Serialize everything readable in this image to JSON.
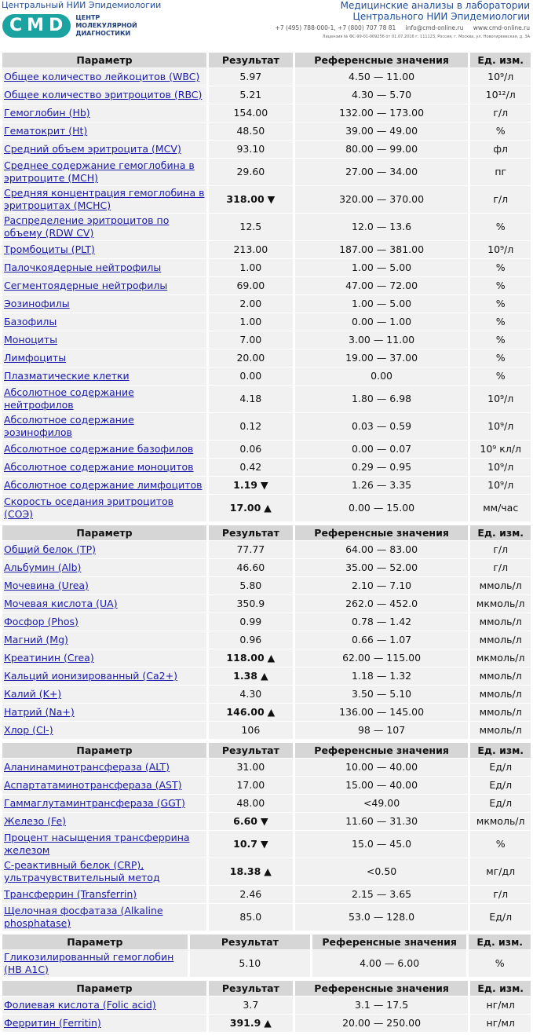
{
  "header": {
    "left_title": "Центральный НИИ Эпидемиологии",
    "logo": "CMD",
    "logo_sub": [
      "ЦЕНТР",
      "МОЛЕКУЛЯРНОЙ",
      "ДИАГНОСТИКИ"
    ],
    "right_lines": [
      "Медицинские анализы в лаборатории",
      "Центрального НИИ Эпидемиологии"
    ],
    "contacts": [
      "+7 (495) 788-000-1, +7 (800) 707 78 81",
      "info@cmd-online.ru",
      "www.cmd-online.ru"
    ],
    "license": "Лицензия № ФС-99-01-009256 от 01.07.2016 г. 111123, Россия, г. Москва, ул. Новогиреевская, д. 3А"
  },
  "tables": [
    {
      "headers": [
        "Параметр",
        "Результат",
        "Референсные значения",
        "Ед. изм."
      ],
      "rows": [
        {
          "name": "Общее количество лейкоцитов (WBC)",
          "result": "5.97",
          "ref": "4.50 — 11.00",
          "unit": "10⁹/л"
        },
        {
          "name": "Общее количество эритроцитов (RBC)",
          "result": "5.21",
          "ref": "4.30 — 5.70",
          "unit": "10¹²/л"
        },
        {
          "name": "Гемоглобин (Hb)",
          "result": "154.00",
          "ref": "132.00 — 173.00",
          "unit": "г/л"
        },
        {
          "name": "Гематокрит (Ht)",
          "result": "48.50",
          "ref": "39.00 — 49.00",
          "unit": "%"
        },
        {
          "name": "Средний объем эритроцита (MCV)",
          "result": "93.10",
          "ref": "80.00 — 99.00",
          "unit": "фл"
        },
        {
          "name": "Среднее содержание гемоглобина в эритроците (MCH)",
          "result": "29.60",
          "ref": "27.00 — 34.00",
          "unit": "пг"
        },
        {
          "name": "Средняя концентрация гемоглобина в эритроцитах (MCHC)",
          "result": "318.00",
          "flag": "▼",
          "ref": "320.00 — 370.00",
          "unit": "г/л"
        },
        {
          "name": "Распределение эритроцитов по объему (RDW CV)",
          "result": "12.5",
          "ref": "12.0 — 13.6",
          "unit": "%"
        },
        {
          "name": "Тромбоциты (PLT)",
          "result": "213.00",
          "ref": "187.00 — 381.00",
          "unit": "10⁹/л"
        },
        {
          "name": "Палочкоядерные нейтрофилы",
          "result": "1.00",
          "ref": "1.00 — 5.00",
          "unit": "%"
        },
        {
          "name": "Сегментоядерные нейтрофилы",
          "result": "69.00",
          "ref": "47.00 — 72.00",
          "unit": "%"
        },
        {
          "name": "Эозинофилы",
          "result": "2.00",
          "ref": "1.00 — 5.00",
          "unit": "%"
        },
        {
          "name": "Базофилы",
          "result": "1.00",
          "ref": "0.00 — 1.00",
          "unit": "%"
        },
        {
          "name": "Моноциты",
          "result": "7.00",
          "ref": "3.00 — 11.00",
          "unit": "%"
        },
        {
          "name": "Лимфоциты",
          "result": "20.00",
          "ref": "19.00 — 37.00",
          "unit": "%"
        },
        {
          "name": "Плазматические клетки",
          "result": "0.00",
          "ref": "0.00",
          "unit": "%"
        },
        {
          "name": "Абсолютное содержание нейтрофилов",
          "result": "4.18",
          "ref": "1.80 — 6.98",
          "unit": "10⁹/л"
        },
        {
          "name": "Абсолютное содержание эозинофилов",
          "result": "0.12",
          "ref": "0.03 — 0.59",
          "unit": "10⁹/л"
        },
        {
          "name": "Абсолютное содержание базофилов",
          "result": "0.06",
          "ref": "0.00 — 0.07",
          "unit": "10⁹ кл/л"
        },
        {
          "name": "Абсолютное содержание моноцитов",
          "result": "0.42",
          "ref": "0.29 — 0.95",
          "unit": "10⁹/л"
        },
        {
          "name": "Абсолютное содержание лимфоцитов",
          "result": "1.19",
          "flag": "▼",
          "ref": "1.26 — 3.35",
          "unit": "10⁹/л"
        },
        {
          "name": "Скорость оседания эритроцитов (СОЭ)",
          "result": "17.00",
          "flag": "▲",
          "ref": "0.00 — 15.00",
          "unit": "мм/час"
        }
      ]
    },
    {
      "headers": [
        "Параметр",
        "Результат",
        "Референсные значения",
        "Ед. изм."
      ],
      "rows": [
        {
          "name": "Общий белок (TP)",
          "result": "77.77",
          "ref": "64.00 — 83.00",
          "unit": "г/л"
        },
        {
          "name": "Альбумин (Alb)",
          "result": "46.60",
          "ref": "35.00 — 52.00",
          "unit": "г/л"
        },
        {
          "name": "Мочевина (Urea)",
          "result": "5.80",
          "ref": "2.10 — 7.10",
          "unit": "ммоль/л"
        },
        {
          "name": "Мочевая кислота (UA)",
          "result": "350.9",
          "ref": "262.0 — 452.0",
          "unit": "мкмоль/л"
        },
        {
          "name": "Фосфор (Phos)",
          "result": "0.99",
          "ref": "0.78 — 1.42",
          "unit": "ммоль/л"
        },
        {
          "name": "Магний (Mg)",
          "result": "0.96",
          "ref": "0.66 — 1.07",
          "unit": "ммоль/л"
        },
        {
          "name": "Креатинин (Crea)",
          "result": "118.00",
          "flag": "▲",
          "ref": "62.00 — 115.00",
          "unit": "мкмоль/л"
        },
        {
          "name": "Кальций ионизированный (Ca2+)",
          "result": "1.38",
          "flag": "▲",
          "ref": "1.18 — 1.32",
          "unit": "ммоль/л"
        },
        {
          "name": "Калий (K+)",
          "result": "4.30",
          "ref": "3.50 — 5.10",
          "unit": "ммоль/л"
        },
        {
          "name": "Натрий (Na+)",
          "result": "146.00",
          "flag": "▲",
          "ref": "136.00 — 145.00",
          "unit": "ммоль/л"
        },
        {
          "name": "Хлор (Cl-)",
          "result": "106",
          "ref": "98 — 107",
          "unit": "ммоль/л"
        }
      ]
    },
    {
      "headers": [
        "Параметр",
        "Результат",
        "Референсные значения",
        "Ед. изм."
      ],
      "rows": [
        {
          "name": "Аланинаминотрансфераза (ALT)",
          "result": "31.00",
          "ref": "10.00 — 40.00",
          "unit": "Ед/л"
        },
        {
          "name": "Аспартатаминотрансфераза (AST)",
          "result": "17.00",
          "ref": "15.00 — 40.00",
          "unit": "Ед/л"
        },
        {
          "name": "Гаммаглутаминтрансфераза (GGT)",
          "result": "48.00",
          "ref": "<49.00",
          "unit": "Ед/л"
        },
        {
          "name": "Железо (Fe)",
          "result": "6.60",
          "flag": "▼",
          "ref": "11.60 — 31.30",
          "unit": "мкмоль/л"
        },
        {
          "name": "Процент насыщения трансферрина железом",
          "result": "10.7",
          "flag": "▼",
          "ref": "15.0 — 45.0",
          "unit": "%"
        },
        {
          "name": "С-реактивный белок (CRP), ультрачувствительный метод",
          "result": "18.38",
          "flag": "▲",
          "ref": "<0.50",
          "unit": "мг/дл"
        },
        {
          "name": "Трансферрин (Transferrin)",
          "result": "2.46",
          "ref": "2.15 — 3.65",
          "unit": "г/л"
        },
        {
          "name": "Щелочная фосфатаза (Alkaline phosphatase)",
          "result": "85.0",
          "ref": "53.0 — 128.0",
          "unit": "Ед/л"
        }
      ]
    },
    {
      "headers": [
        "Параметр",
        "Результат",
        "Референсные значения",
        "Ед. изм."
      ],
      "rows": [
        {
          "name": "Гликозилированный гемоглобин (HB A1C)",
          "result": "5.10",
          "ref": "4.00 — 6.00",
          "unit": "%"
        }
      ]
    },
    {
      "headers": [
        "Параметр",
        "Результат",
        "Референсные значения",
        "Ед. изм."
      ],
      "rows": [
        {
          "name": "Фолиевая кислота (Folic acid)",
          "result": "3.7",
          "ref": "3.1 — 17.5",
          "unit": "нг/мл"
        },
        {
          "name": "Ферритин (Ferritin)",
          "result": "391.9",
          "flag": "▲",
          "ref": "20.00 — 250.00",
          "unit": "нг/мл"
        }
      ]
    }
  ]
}
